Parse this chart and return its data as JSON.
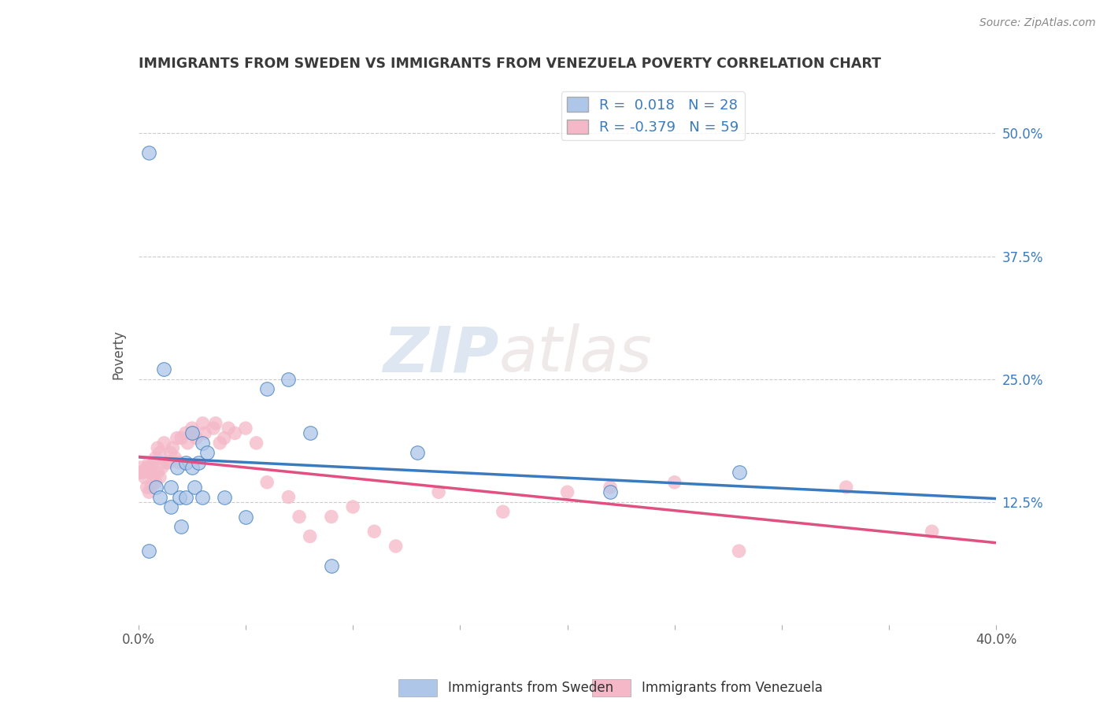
{
  "title": "IMMIGRANTS FROM SWEDEN VS IMMIGRANTS FROM VENEZUELA POVERTY CORRELATION CHART",
  "source": "Source: ZipAtlas.com",
  "xlabel_sweden": "Immigrants from Sweden",
  "xlabel_venezuela": "Immigrants from Venezuela",
  "ylabel": "Poverty",
  "watermark_zip": "ZIP",
  "watermark_atlas": "atlas",
  "xlim": [
    0.0,
    0.4
  ],
  "ylim": [
    0.0,
    0.55
  ],
  "yticks": [
    0.0,
    0.125,
    0.25,
    0.375,
    0.5
  ],
  "ytick_labels": [
    "",
    "12.5%",
    "25.0%",
    "37.5%",
    "50.0%"
  ],
  "grid_color": "#cccccc",
  "background_color": "#ffffff",
  "sweden_color": "#aec6e8",
  "venezuela_color": "#f4b8c8",
  "sweden_line_color": "#3a7bbf",
  "venezuela_line_color": "#e05080",
  "R_sweden": 0.018,
  "N_sweden": 28,
  "R_venezuela": -0.379,
  "N_venezuela": 59,
  "legend_color": "#3a7bbf",
  "title_color": "#3a3a3a",
  "sweden_scatter_x": [
    0.005,
    0.008,
    0.01,
    0.012,
    0.015,
    0.015,
    0.018,
    0.019,
    0.02,
    0.022,
    0.022,
    0.025,
    0.025,
    0.026,
    0.028,
    0.03,
    0.03,
    0.032,
    0.04,
    0.05,
    0.06,
    0.07,
    0.08,
    0.09,
    0.13,
    0.22,
    0.28,
    0.005
  ],
  "sweden_scatter_y": [
    0.48,
    0.14,
    0.13,
    0.26,
    0.12,
    0.14,
    0.16,
    0.13,
    0.1,
    0.165,
    0.13,
    0.16,
    0.195,
    0.14,
    0.165,
    0.185,
    0.13,
    0.175,
    0.13,
    0.11,
    0.24,
    0.25,
    0.195,
    0.06,
    0.175,
    0.135,
    0.155,
    0.075
  ],
  "venezuela_scatter_x": [
    0.002,
    0.003,
    0.004,
    0.004,
    0.005,
    0.005,
    0.006,
    0.006,
    0.007,
    0.007,
    0.008,
    0.008,
    0.009,
    0.009,
    0.01,
    0.01,
    0.011,
    0.012,
    0.013,
    0.014,
    0.015,
    0.016,
    0.017,
    0.018,
    0.019,
    0.02,
    0.022,
    0.023,
    0.025,
    0.025,
    0.027,
    0.03,
    0.031,
    0.035,
    0.036,
    0.038,
    0.04,
    0.042,
    0.045,
    0.05,
    0.055,
    0.06,
    0.07,
    0.075,
    0.08,
    0.09,
    0.1,
    0.11,
    0.12,
    0.14,
    0.17,
    0.2,
    0.22,
    0.25,
    0.28,
    0.33,
    0.37,
    0.001,
    0.001
  ],
  "venezuela_scatter_y": [
    0.155,
    0.15,
    0.14,
    0.16,
    0.135,
    0.165,
    0.14,
    0.155,
    0.15,
    0.165,
    0.145,
    0.17,
    0.155,
    0.18,
    0.15,
    0.175,
    0.16,
    0.185,
    0.165,
    0.165,
    0.175,
    0.18,
    0.17,
    0.19,
    0.165,
    0.19,
    0.195,
    0.185,
    0.195,
    0.2,
    0.19,
    0.205,
    0.195,
    0.2,
    0.205,
    0.185,
    0.19,
    0.2,
    0.195,
    0.2,
    0.185,
    0.145,
    0.13,
    0.11,
    0.09,
    0.11,
    0.12,
    0.095,
    0.08,
    0.135,
    0.115,
    0.135,
    0.14,
    0.145,
    0.075,
    0.14,
    0.095,
    0.155,
    0.16
  ]
}
